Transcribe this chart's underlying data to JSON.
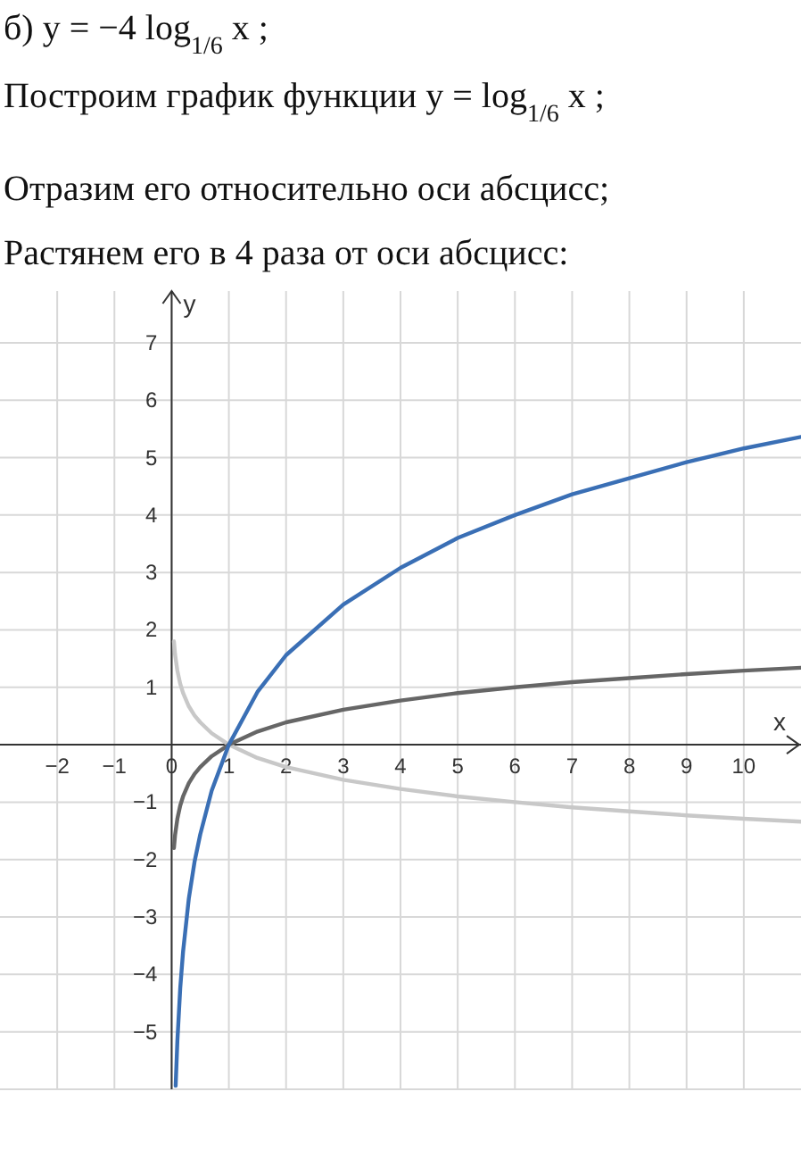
{
  "chart_data": {
    "type": "line",
    "title": "б) y = −4 log$_{1/6}$ x ;",
    "annotations": [
      "Построим график функции y = log$_{1/6}$ x ;",
      "Отразим его относительно оси абсцисс;",
      "Растянем его в 4 раза от оси абсцисс:"
    ],
    "xlabel": "x",
    "ylabel": "y",
    "xlim": [
      -3,
      11
    ],
    "ylim": [
      -6,
      7.9
    ],
    "xticks": [
      {
        "value": -2,
        "label": "−2"
      },
      {
        "value": -1,
        "label": "−1"
      },
      0,
      1,
      2,
      3,
      4,
      5,
      6,
      7,
      8,
      9,
      10
    ],
    "yticks": [
      {
        "value": -6,
        "label": null
      },
      {
        "value": -5,
        "label": "−5"
      },
      {
        "value": -4,
        "label": "−4"
      },
      {
        "value": -3,
        "label": "−3"
      },
      {
        "value": -2,
        "label": "−2"
      },
      {
        "value": -1,
        "label": "−1"
      },
      1,
      2,
      3,
      4,
      5,
      6,
      7
    ],
    "grid": true,
    "marker": "none",
    "line_style": "solid",
    "series": [
      {
        "color": "#c8c8c8",
        "x": [
          0.04,
          0.06,
          0.1,
          0.15,
          0.2,
          0.3,
          0.4,
          0.5,
          0.7,
          1,
          1.5,
          2,
          3,
          4,
          5,
          6,
          7,
          8,
          9,
          10,
          11
        ],
        "values": [
          1.8,
          1.57,
          1.29,
          1.06,
          0.9,
          0.67,
          0.51,
          0.39,
          0.2,
          0,
          -0.23,
          -0.39,
          -0.61,
          -0.77,
          -0.9,
          -1,
          -1.09,
          -1.16,
          -1.23,
          -1.29,
          -1.34
        ]
      },
      {
        "color": "#666666",
        "x": [
          0.04,
          0.06,
          0.1,
          0.15,
          0.2,
          0.3,
          0.4,
          0.5,
          0.7,
          1,
          1.5,
          2,
          3,
          4,
          5,
          6,
          7,
          8,
          9,
          10,
          11
        ],
        "values": [
          -1.8,
          -1.57,
          -1.29,
          -1.06,
          -0.9,
          -0.67,
          -0.51,
          -0.39,
          -0.2,
          0,
          0.23,
          0.39,
          0.61,
          0.77,
          0.9,
          1,
          1.09,
          1.16,
          1.23,
          1.29,
          1.34
        ]
      },
      {
        "color": "#3a6fb5",
        "x": [
          0.07,
          0.1,
          0.15,
          0.2,
          0.3,
          0.4,
          0.5,
          0.7,
          1,
          1.5,
          2,
          3,
          4,
          5,
          6,
          7,
          8,
          9,
          10,
          11
        ],
        "values": [
          -5.94,
          -5.16,
          -4.24,
          -3.6,
          -2.68,
          -2.04,
          -1.56,
          -0.8,
          0,
          0.92,
          1.56,
          2.44,
          3.08,
          3.6,
          4,
          4.36,
          4.64,
          4.92,
          5.16,
          5.36
        ]
      }
    ]
  }
}
